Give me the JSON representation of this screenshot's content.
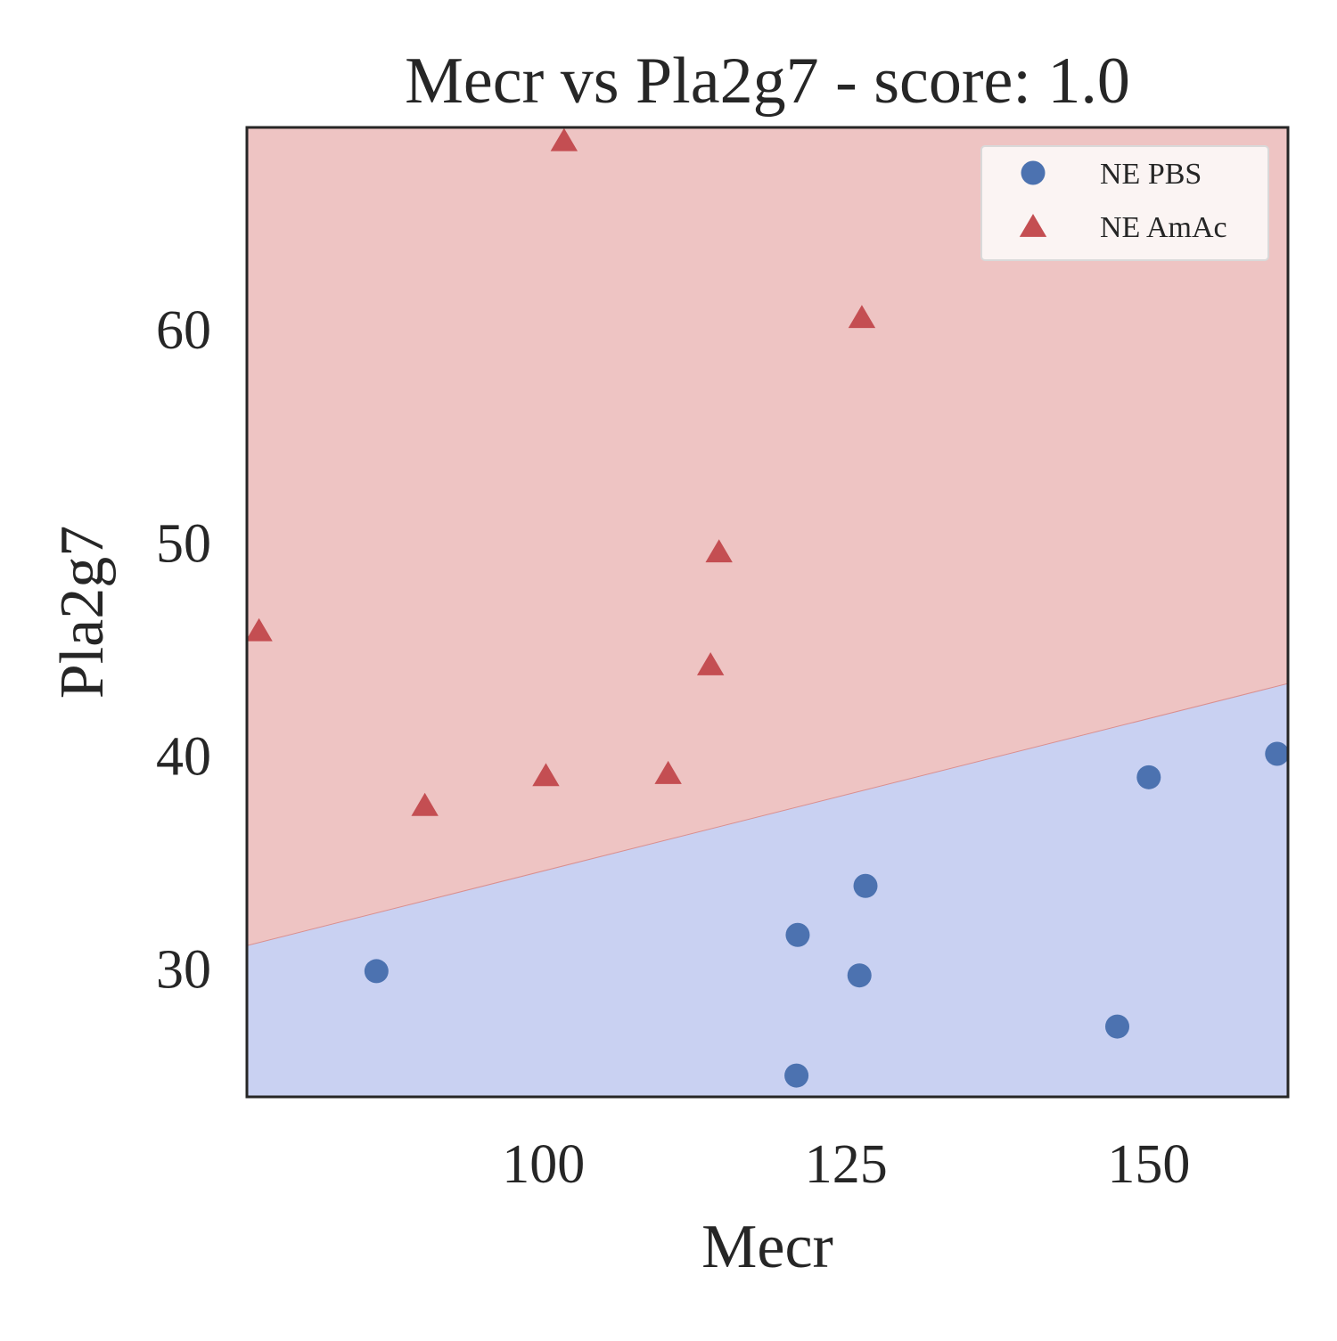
{
  "chart_data": {
    "type": "scatter",
    "title": "Mecr vs Pla2g7 - score: 1.0",
    "xlabel": "Mecr",
    "ylabel": "Pla2g7",
    "xlim": [
      75.5,
      161.5
    ],
    "ylim": [
      24.0,
      69.5
    ],
    "xticks": [
      100,
      125,
      150
    ],
    "xtick_labels": [
      "100",
      "125",
      "150"
    ],
    "yticks": [
      30,
      40,
      50,
      60
    ],
    "ytick_labels": [
      "30",
      "40",
      "50",
      "60"
    ],
    "grid": false,
    "legend_position": "top-right",
    "decision_boundary": {
      "x": [
        75.5,
        161.5
      ],
      "y": [
        31.1,
        43.4
      ],
      "above_color": "#eec4c3",
      "below_color": "#c9d1f2"
    },
    "series": [
      {
        "name": "NE PBS",
        "marker": "circle",
        "color": "#4c72b0",
        "points": [
          {
            "x": 86.2,
            "y": 29.9
          },
          {
            "x": 121.0,
            "y": 31.6
          },
          {
            "x": 126.6,
            "y": 33.9
          },
          {
            "x": 126.1,
            "y": 29.7
          },
          {
            "x": 120.9,
            "y": 25.0
          },
          {
            "x": 147.4,
            "y": 27.3
          },
          {
            "x": 150.0,
            "y": 39.0
          },
          {
            "x": 160.6,
            "y": 40.1
          }
        ]
      },
      {
        "name": "NE AmAc",
        "marker": "triangle",
        "color": "#c44e52",
        "points": [
          {
            "x": 76.5,
            "y": 45.8
          },
          {
            "x": 90.2,
            "y": 37.6
          },
          {
            "x": 100.2,
            "y": 39.0
          },
          {
            "x": 101.7,
            "y": 68.8
          },
          {
            "x": 110.3,
            "y": 39.1
          },
          {
            "x": 113.8,
            "y": 44.2
          },
          {
            "x": 114.5,
            "y": 49.5
          },
          {
            "x": 126.3,
            "y": 60.5
          }
        ]
      }
    ]
  }
}
